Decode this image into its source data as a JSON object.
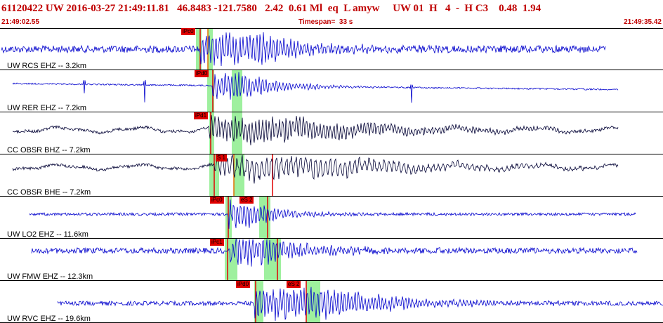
{
  "header": {
    "summary": "61120422 UW 2016-03-27 21:49:11.81   46.8483 -121.7580   2.42  0.61 Ml  eq  L amyw     UW 01  H   4  -  H C3    0.48  1.94",
    "start_time": "21:49:02.55",
    "timespan": "Timespan=  33 s",
    "end_time": "21:49:35.42"
  },
  "colors": {
    "header_text": "#c00000",
    "trace_blue": "#0000cc",
    "trace_black": "#000033",
    "pick_window": "#9ef09e",
    "pick_flag": "#e00000",
    "divider": "#000000"
  },
  "traces": [
    {
      "label": "UW RCS EHZ -- 3.2km",
      "color": "blue",
      "picks": [
        "iPc0"
      ]
    },
    {
      "label": "UW RER EHZ -- 7.2km",
      "color": "blue",
      "picks": [
        "iPd0"
      ]
    },
    {
      "label": "CC OBSR BHZ -- 7.2km",
      "color": "black",
      "picks": [
        "iPd1"
      ]
    },
    {
      "label": "CC OBSR BHE -- 7.2km",
      "color": "black",
      "picks": [
        "S 1"
      ]
    },
    {
      "label": "UW LO2 EHZ -- 11.6km",
      "color": "blue",
      "picks": [
        "iPc0",
        "eS 2"
      ]
    },
    {
      "label": "UW FMW EHZ -- 12.3km",
      "color": "blue",
      "picks": [
        "iPc1"
      ]
    },
    {
      "label": "UW RVC EHZ -- 19.6km",
      "color": "blue",
      "picks": [
        "iPd0",
        "eS 2"
      ]
    }
  ]
}
